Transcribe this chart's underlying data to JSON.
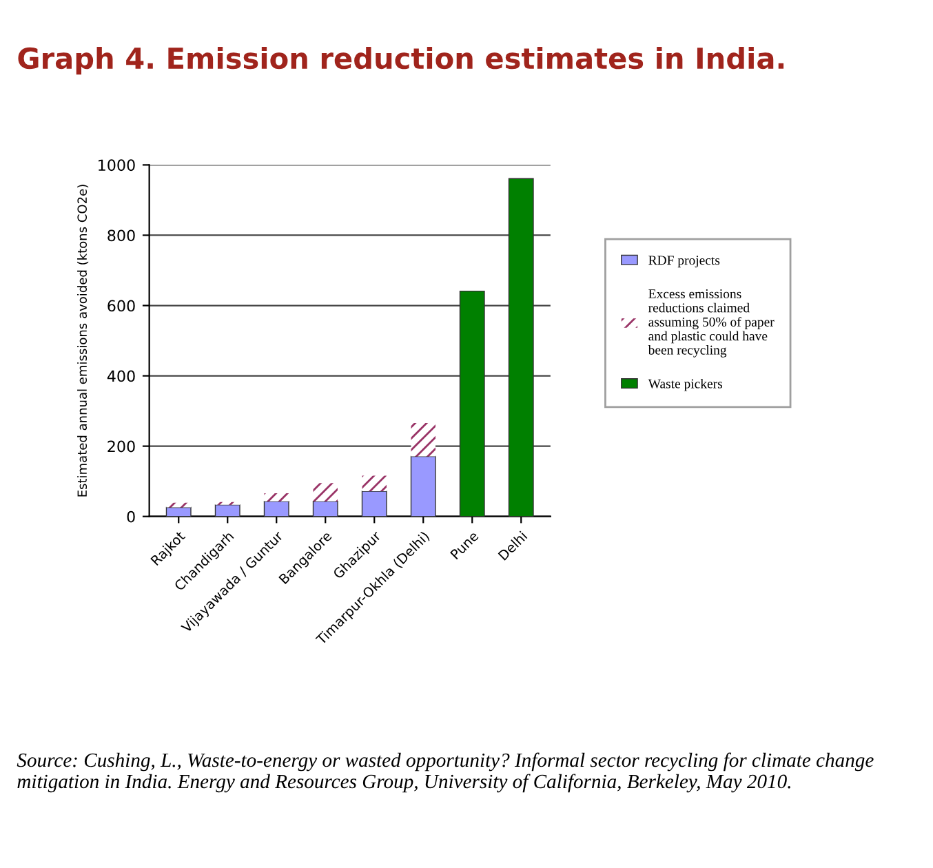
{
  "chart_data": {
    "type": "bar",
    "title": "Graph 4. Emission reduction estimates in India.",
    "ylabel": "Estimated annual emissions avoided (ktons CO2e)",
    "categories": [
      "Rajkot",
      "Chandigarh",
      "Vijayawada / Guntur",
      "Bangalore",
      "Ghazipur",
      "Timarpur-Okhla (Delhi)",
      "Pune",
      "Delhi"
    ],
    "stacked": true,
    "series": [
      {
        "name": "RDF projects",
        "color": "#9999ff",
        "values": [
          26,
          33,
          43,
          43,
          72,
          171,
          null,
          null
        ]
      },
      {
        "name": "Excess emissions reductions claimed assuming 50% of paper and plastic could have been recycling",
        "color": "#993366",
        "values": [
          13,
          8,
          23,
          52,
          44,
          95,
          null,
          null
        ]
      },
      {
        "name": "Waste pickers",
        "color": "#008000",
        "values": [
          null,
          null,
          null,
          null,
          null,
          null,
          641,
          961
        ]
      }
    ],
    "ylim": [
      0,
      1000
    ],
    "yticks": [
      0,
      200,
      400,
      600,
      800,
      1000
    ],
    "grid": "y",
    "legend": "right",
    "annotations": [
      "Source: Cushing, L., Waste-to-energy or wasted opportunity? Informal sector recycling for climate change mitigation in India. Energy and Resources Group, University of California, Berkeley, May 2010."
    ]
  }
}
